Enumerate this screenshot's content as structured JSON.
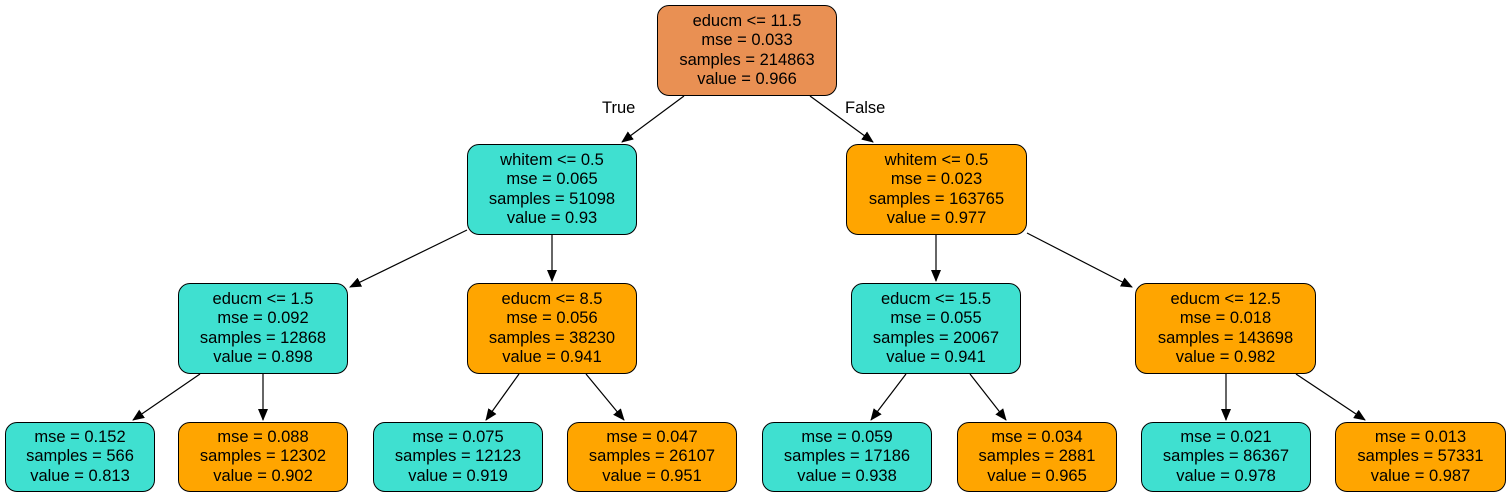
{
  "colors": {
    "root": "#e99053",
    "teal": "#3fe0d0",
    "orange": "#ffa500",
    "edge": "#000000"
  },
  "edge_labels": {
    "true": "True",
    "false": "False"
  },
  "nodes": {
    "root": {
      "lines": [
        "educm <= 11.5",
        "mse = 0.033",
        "samples = 214863",
        "value = 0.966"
      ]
    },
    "l": {
      "lines": [
        "whitem <= 0.5",
        "mse = 0.065",
        "samples = 51098",
        "value = 0.93"
      ]
    },
    "r": {
      "lines": [
        "whitem <= 0.5",
        "mse = 0.023",
        "samples = 163765",
        "value = 0.977"
      ]
    },
    "ll": {
      "lines": [
        "educm <= 1.5",
        "mse = 0.092",
        "samples = 12868",
        "value = 0.898"
      ]
    },
    "lr": {
      "lines": [
        "educm <= 8.5",
        "mse = 0.056",
        "samples = 38230",
        "value = 0.941"
      ]
    },
    "rl": {
      "lines": [
        "educm <= 15.5",
        "mse = 0.055",
        "samples = 20067",
        "value = 0.941"
      ]
    },
    "rr": {
      "lines": [
        "educm <= 12.5",
        "mse = 0.018",
        "samples = 143698",
        "value = 0.982"
      ]
    },
    "lll": {
      "lines": [
        "mse = 0.152",
        "samples = 566",
        "value = 0.813"
      ]
    },
    "llr": {
      "lines": [
        "mse = 0.088",
        "samples = 12302",
        "value = 0.902"
      ]
    },
    "lrl": {
      "lines": [
        "mse = 0.075",
        "samples = 12123",
        "value = 0.919"
      ]
    },
    "lrr": {
      "lines": [
        "mse = 0.047",
        "samples = 26107",
        "value = 0.951"
      ]
    },
    "rll": {
      "lines": [
        "mse = 0.059",
        "samples = 17186",
        "value = 0.938"
      ]
    },
    "rlr": {
      "lines": [
        "mse = 0.034",
        "samples = 2881",
        "value = 0.965"
      ]
    },
    "rrl": {
      "lines": [
        "mse = 0.021",
        "samples = 86367",
        "value = 0.978"
      ]
    },
    "rrr": {
      "lines": [
        "mse = 0.013",
        "samples = 57331",
        "value = 0.987"
      ]
    }
  }
}
